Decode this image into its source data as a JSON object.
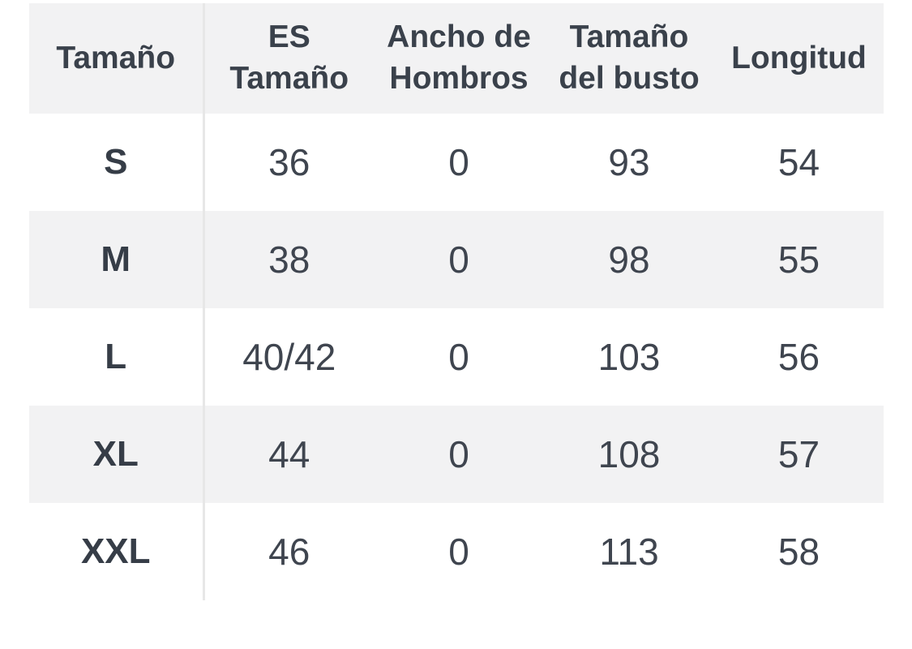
{
  "chart_data": {
    "type": "table",
    "title": "",
    "columns": [
      "Tamaño",
      "ES Tamaño",
      "Ancho de Hombros",
      "Tamaño del busto",
      "Longitud"
    ],
    "rows": [
      [
        "S",
        "36",
        "0",
        "93",
        "54"
      ],
      [
        "M",
        "38",
        "0",
        "98",
        "55"
      ],
      [
        "L",
        "40/42",
        "0",
        "103",
        "56"
      ],
      [
        "XL",
        "44",
        "0",
        "108",
        "57"
      ],
      [
        "XXL",
        "46",
        "0",
        "113",
        "58"
      ]
    ],
    "layout": {
      "header_background": "#f2f2f3",
      "stripe_background": "#f2f2f3",
      "row_background": "#ffffff",
      "divider_color": "#e7e7e7",
      "text_color": "#3a414b",
      "zebra_striping": "even rows gray, first data row white",
      "column_divider": "vertical line after first column only, no horizontal borders"
    }
  }
}
